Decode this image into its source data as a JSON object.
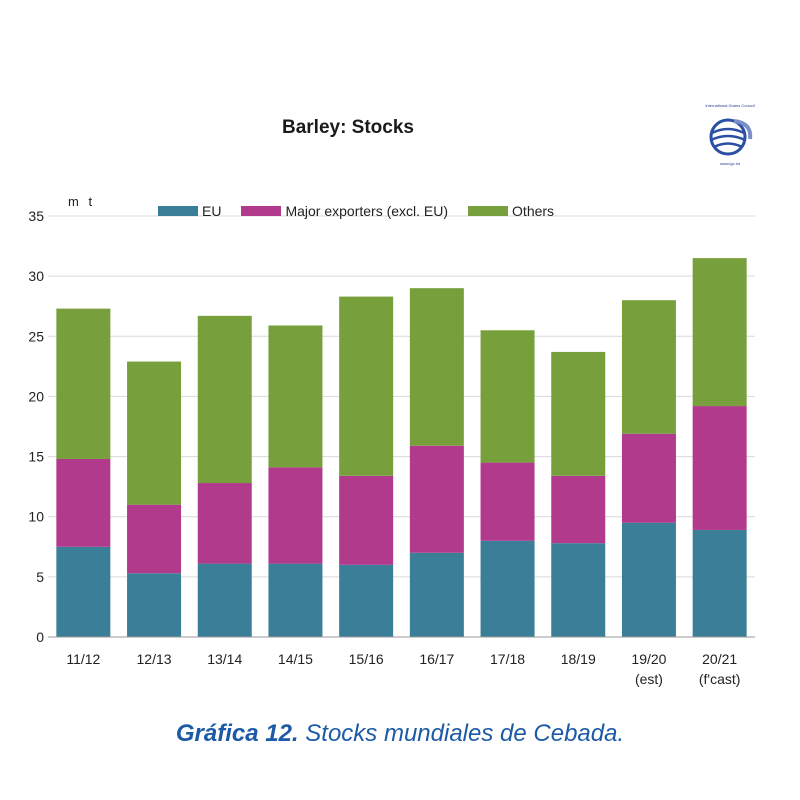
{
  "chart_data": {
    "type": "bar",
    "stacked": true,
    "title": "Barley: Stocks",
    "ylabel": "m t",
    "ylim": [
      0,
      35
    ],
    "yticks": [
      0,
      5,
      10,
      15,
      20,
      25,
      30,
      35
    ],
    "grid": true,
    "legend_position": "top",
    "categories": [
      "11/12",
      "12/13",
      "13/14",
      "14/15",
      "15/16",
      "16/17",
      "17/18",
      "18/19",
      "19/20",
      "20/21"
    ],
    "category_sublabels": [
      "",
      "",
      "",
      "",
      "",
      "",
      "",
      "",
      "(est)",
      "(f'cast)"
    ],
    "series": [
      {
        "name": "EU",
        "color": "#3a7f97",
        "values": [
          7.5,
          5.3,
          6.1,
          6.1,
          6.0,
          7.0,
          8.0,
          7.8,
          9.5,
          8.9
        ]
      },
      {
        "name": "Major exporters (excl. EU)",
        "color": "#b13a8c",
        "values": [
          7.3,
          5.7,
          6.7,
          8.0,
          7.4,
          8.9,
          6.5,
          5.6,
          7.4,
          10.3
        ]
      },
      {
        "name": "Others",
        "color": "#77a03c",
        "values": [
          12.5,
          11.9,
          13.9,
          11.8,
          14.9,
          13.1,
          11.0,
          10.3,
          11.1,
          12.3
        ]
      }
    ]
  },
  "logo": {
    "top_text": "International Grains Council",
    "bottom_text": "www.igc.int",
    "icon": "igc-globe-icon"
  },
  "caption": {
    "bold": "Gráfica 12.",
    "text": " Stocks mundiales de Cebada."
  }
}
